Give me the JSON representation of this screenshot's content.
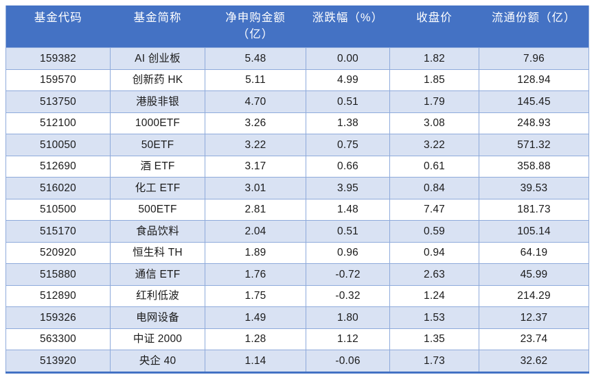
{
  "colors": {
    "header_bg": "#4472C4",
    "header_text": "#FFFFFF",
    "band_row_bg": "#D9E2F3",
    "white_row_bg": "#FFFFFF",
    "inner_border": "#8EAADB",
    "outer_bottom_border": "#4472C4",
    "body_text": "#1a1a1a"
  },
  "table": {
    "columns": [
      {
        "key": "fund-code",
        "label": "基金代码"
      },
      {
        "key": "fund-name",
        "label": "基金简称"
      },
      {
        "key": "net-subscription-amount",
        "label": "净申购金额\n（亿）"
      },
      {
        "key": "change-percent",
        "label": "涨跌幅（%）"
      },
      {
        "key": "close-price",
        "label": "收盘价"
      },
      {
        "key": "float-shares",
        "label": "流通份额（亿）"
      }
    ],
    "rows": [
      [
        "159382",
        "AI 创业板",
        "5.48",
        "0.00",
        "1.82",
        "7.96"
      ],
      [
        "159570",
        "创新药 HK",
        "5.11",
        "4.99",
        "1.85",
        "128.94"
      ],
      [
        "513750",
        "港股非银",
        "4.70",
        "0.51",
        "1.79",
        "145.45"
      ],
      [
        "512100",
        "1000ETF",
        "3.26",
        "1.38",
        "3.08",
        "248.93"
      ],
      [
        "510050",
        "50ETF",
        "3.22",
        "0.75",
        "3.22",
        "571.32"
      ],
      [
        "512690",
        "酒 ETF",
        "3.17",
        "0.66",
        "0.61",
        "358.88"
      ],
      [
        "516020",
        "化工 ETF",
        "3.01",
        "3.95",
        "0.84",
        "39.53"
      ],
      [
        "510500",
        "500ETF",
        "2.81",
        "1.48",
        "7.47",
        "181.73"
      ],
      [
        "515170",
        "食品饮料",
        "2.04",
        "0.51",
        "0.59",
        "105.14"
      ],
      [
        "520920",
        "恒生科 TH",
        "1.89",
        "0.96",
        "0.94",
        "64.19"
      ],
      [
        "515880",
        "通信 ETF",
        "1.76",
        "-0.72",
        "2.63",
        "45.99"
      ],
      [
        "512890",
        "红利低波",
        "1.75",
        "-0.32",
        "1.24",
        "214.29"
      ],
      [
        "159326",
        "电网设备",
        "1.49",
        "1.80",
        "1.53",
        "12.37"
      ],
      [
        "563300",
        "中证 2000",
        "1.28",
        "1.12",
        "1.35",
        "23.74"
      ],
      [
        "513920",
        "央企 40",
        "1.14",
        "-0.06",
        "1.73",
        "32.62"
      ]
    ]
  }
}
